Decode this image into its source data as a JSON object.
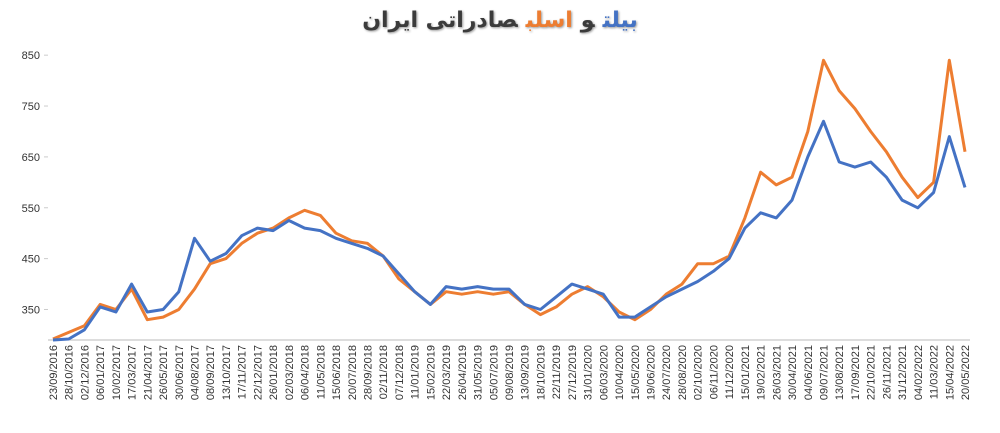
{
  "chart_data": {
    "type": "line",
    "title_connector": "و",
    "title_rest": "صادراتی ایران",
    "categories": [
      "23/09/2016",
      "28/10/2016",
      "02/12/2016",
      "06/01/2017",
      "10/02/2017",
      "17/03/2017",
      "21/04/2017",
      "26/05/2017",
      "30/06/2017",
      "04/08/2017",
      "08/09/2017",
      "13/10/2017",
      "17/11/2017",
      "22/12/2017",
      "26/01/2018",
      "02/03/2018",
      "06/04/2018",
      "11/05/2018",
      "15/06/2018",
      "20/07/2018",
      "28/09/2018",
      "02/11/2018",
      "07/12/2018",
      "11/01/2019",
      "15/02/2019",
      "22/03/2019",
      "26/04/2019",
      "31/05/2019",
      "05/07/2019",
      "09/08/2019",
      "13/09/2019",
      "18/10/2019",
      "22/11/2019",
      "27/12/2019",
      "31/01/2020",
      "06/03/2020",
      "10/04/2020",
      "15/05/2020",
      "19/06/2020",
      "24/07/2020",
      "28/08/2020",
      "02/10/2020",
      "06/11/2020",
      "11/12/2020",
      "15/01/2021",
      "19/02/2021",
      "26/03/2021",
      "30/04/2021",
      "04/06/2021",
      "09/07/2021",
      "13/08/2021",
      "17/09/2021",
      "22/10/2021",
      "26/11/2021",
      "31/12/2021",
      "04/02/2022",
      "11/03/2022",
      "15/04/2022",
      "20/05/2022"
    ],
    "series": [
      {
        "name": "بیلت",
        "color": "#4472c4",
        "values": [
          290,
          292,
          310,
          355,
          345,
          400,
          345,
          350,
          385,
          490,
          445,
          460,
          495,
          510,
          505,
          525,
          510,
          505,
          490,
          480,
          470,
          455,
          420,
          385,
          360,
          395,
          390,
          395,
          390,
          390,
          360,
          350,
          375,
          400,
          390,
          380,
          335,
          335,
          355,
          375,
          390,
          405,
          425,
          450,
          510,
          540,
          530,
          565,
          650,
          720,
          640,
          630,
          640,
          610,
          565,
          550,
          580,
          690,
          590
        ]
      },
      {
        "name": "اسلب",
        "color": "#ed7d31",
        "values": [
          292,
          305,
          318,
          360,
          350,
          390,
          330,
          335,
          350,
          390,
          440,
          450,
          480,
          500,
          510,
          530,
          545,
          535,
          500,
          485,
          480,
          455,
          410,
          385,
          360,
          385,
          380,
          385,
          380,
          385,
          360,
          340,
          355,
          380,
          395,
          375,
          345,
          330,
          350,
          380,
          400,
          440,
          440,
          455,
          530,
          620,
          595,
          610,
          700,
          840,
          780,
          745,
          700,
          660,
          610,
          570,
          600,
          840,
          660
        ]
      }
    ],
    "ylim": [
      290,
      870
    ],
    "yticks": [
      350,
      450,
      550,
      650,
      750,
      850
    ]
  }
}
